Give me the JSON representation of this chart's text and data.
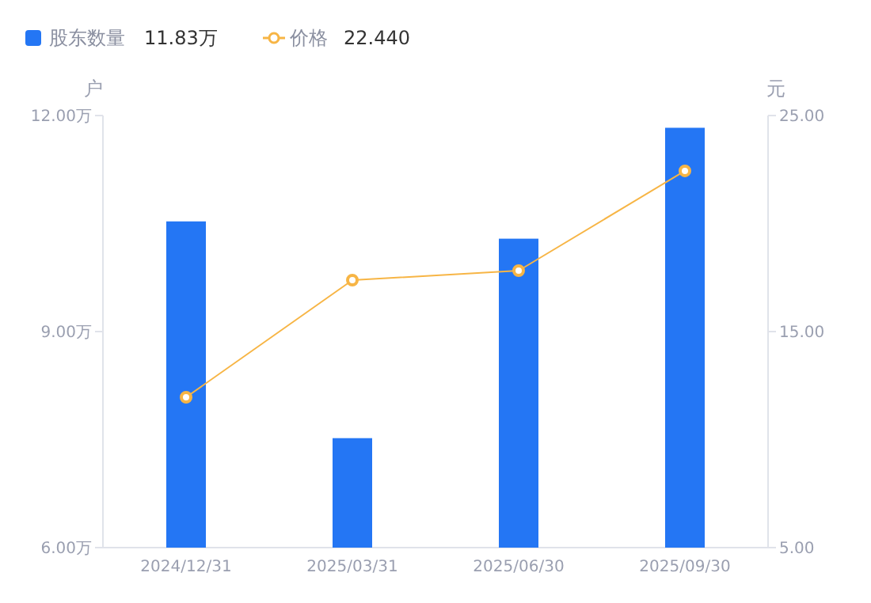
{
  "chart_data": {
    "type": "bar",
    "categories": [
      "2024/12/31",
      "2025/03/31",
      "2025/06/30",
      "2025/09/30"
    ],
    "series": [
      {
        "name": "股东数量",
        "color": "#2476f4",
        "values": [
          10.53,
          7.52,
          10.29,
          11.83
        ]
      },
      {
        "name": "价格",
        "type": "line",
        "axis": "y2",
        "color": "#f7b545",
        "marker": "circle",
        "values": [
          11.96,
          17.38,
          17.82,
          22.44
        ]
      }
    ],
    "ylabel": "户",
    "y2label": "元",
    "ylim": [
      6,
      12
    ],
    "yticks": [
      {
        "value": 6,
        "label": "6.00万"
      },
      {
        "value": 9,
        "label": "9.00万"
      },
      {
        "value": 12,
        "label": "12.00万"
      }
    ],
    "y2lim": [
      5,
      25
    ],
    "y2ticks": [
      {
        "value": 5,
        "label": "5.00"
      },
      {
        "value": 15,
        "label": "15.00"
      },
      {
        "value": 25,
        "label": "25.00"
      }
    ],
    "annotations": [
      "11.83万",
      "22.440"
    ],
    "legend": "top left",
    "grid": false
  }
}
